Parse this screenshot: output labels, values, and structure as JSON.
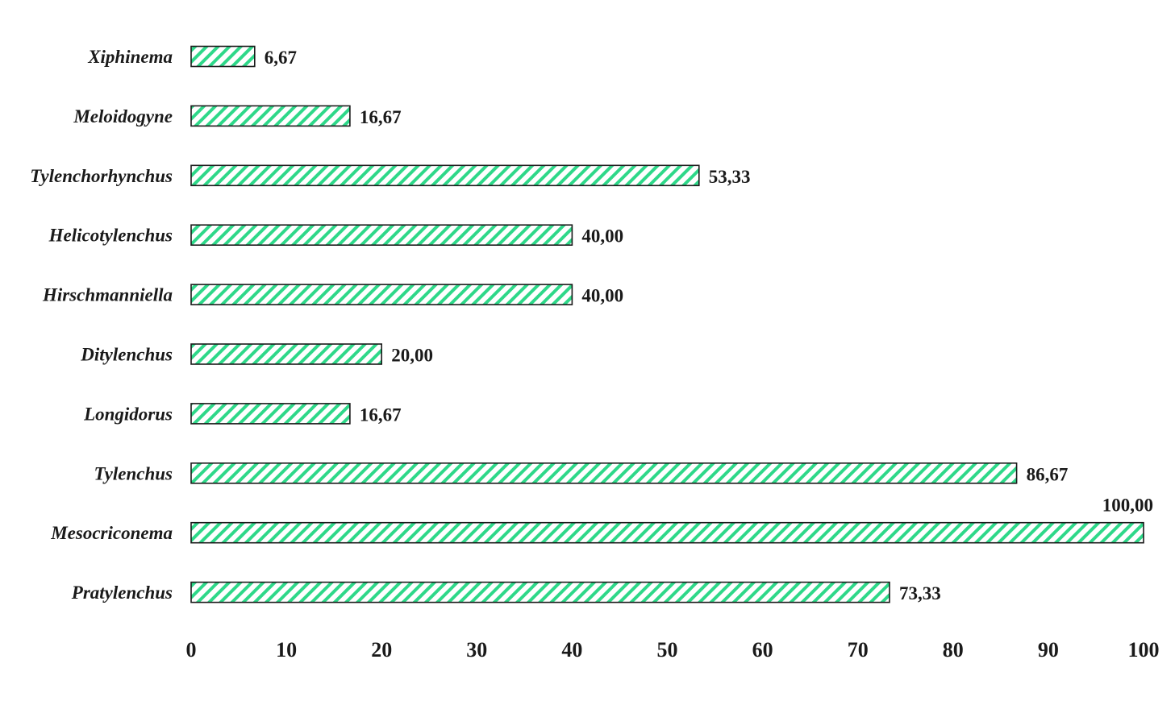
{
  "chart_data": {
    "type": "bar",
    "orientation": "horizontal",
    "categories": [
      "Xiphinema",
      "Meloidogyne",
      "Tylenchorhynchus",
      "Helicotylenchus",
      "Hirschmanniella",
      "Ditylenchus",
      "Longidorus",
      "Tylenchus",
      "Mesocriconema",
      "Pratylenchus"
    ],
    "values": [
      6.67,
      16.67,
      53.33,
      40.0,
      40.0,
      20.0,
      16.67,
      86.67,
      100.0,
      73.33
    ],
    "value_labels": [
      "6,67",
      "16,67",
      "53,33",
      "40,00",
      "40,00",
      "20,00",
      "16,67",
      "86,67",
      "100,00",
      "73,33"
    ],
    "xlim": [
      0,
      100
    ],
    "xticks": [
      0,
      10,
      20,
      30,
      40,
      50,
      60,
      70,
      80,
      90,
      100
    ],
    "title": "",
    "xlabel": "",
    "ylabel": "",
    "grid": false,
    "legend": "none",
    "colors": {
      "bar_fill": "#ffffff",
      "bar_hatch": "#2ed889",
      "bar_border": "#1a1a1a",
      "text": "#1a1a1a"
    },
    "bar_pattern": "diagonal-hatch"
  }
}
